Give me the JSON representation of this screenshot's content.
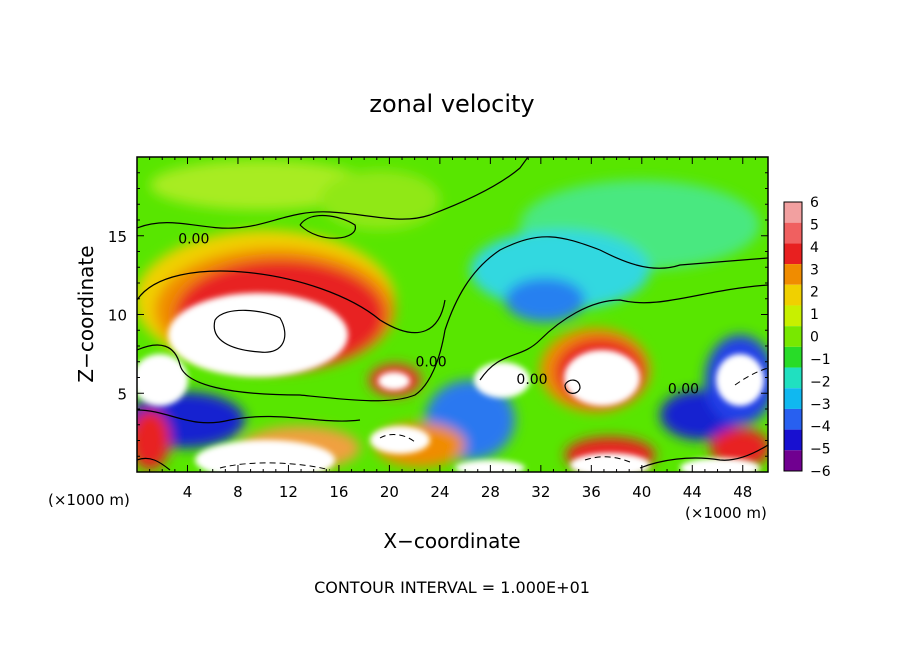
{
  "chart_data": {
    "type": "heatmap",
    "title": "zonal velocity",
    "xlabel": "X−coordinate",
    "ylabel": "Z−coordinate",
    "x_unit_left": "(×1000 m)",
    "x_unit_right": "(×1000 m)",
    "xlim": [
      0,
      50
    ],
    "ylim": [
      0,
      20
    ],
    "x_ticks": [
      4,
      8,
      12,
      16,
      20,
      24,
      28,
      32,
      36,
      40,
      44,
      48
    ],
    "y_ticks": [
      5,
      10,
      15
    ],
    "colorbar": {
      "levels": [
        "6",
        "5",
        "4",
        "3",
        "2",
        "1",
        "0",
        "−1",
        "−2",
        "−3",
        "−4",
        "−5",
        "−6"
      ],
      "colors": [
        "#f2a0a0",
        "#f06060",
        "#e82020",
        "#f08c00",
        "#f0d000",
        "#c8f000",
        "#78e800",
        "#28dc28",
        "#20e0c0",
        "#10b8f0",
        "#2860f0",
        "#1810d0",
        "#700090"
      ]
    },
    "contour_labels": [
      {
        "text": "0.00",
        "x": 4.5,
        "z": 14.5
      },
      {
        "text": "0.00",
        "x": 23.3,
        "z": 6.7
      },
      {
        "text": "0.00",
        "x": 31.3,
        "z": 5.6
      },
      {
        "text": "0.00",
        "x": 43.3,
        "z": 5.0
      }
    ],
    "footer": "CONTOUR INTERVAL = 1.000E+01"
  }
}
